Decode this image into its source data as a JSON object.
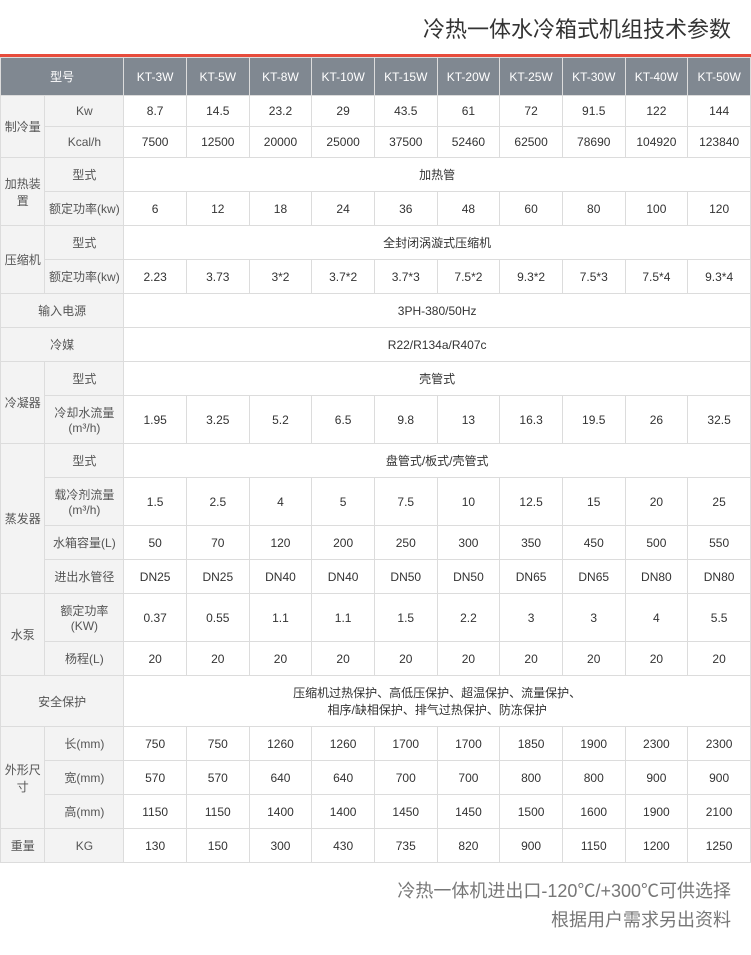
{
  "title": "冷热一体水冷箱式机组技术参数",
  "footer_line1": "冷热一体机进出口-120℃/+300℃可供选择",
  "footer_line2": "根据用户需求另出资料",
  "header": [
    "型号",
    "KT-3W",
    "KT-5W",
    "KT-8W",
    "KT-10W",
    "KT-15W",
    "KT-20W",
    "KT-25W",
    "KT-30W",
    "KT-40W",
    "KT-50W"
  ],
  "groups": {
    "cooling": {
      "label": "制冷量",
      "rows": [
        {
          "sub": "Kw",
          "v": [
            "8.7",
            "14.5",
            "23.2",
            "29",
            "43.5",
            "61",
            "72",
            "91.5",
            "122",
            "144"
          ]
        },
        {
          "sub": "Kcal/h",
          "v": [
            "7500",
            "12500",
            "20000",
            "25000",
            "37500",
            "52460",
            "62500",
            "78690",
            "104920",
            "123840"
          ]
        }
      ]
    },
    "heater": {
      "label": "加热装置",
      "rows": [
        {
          "sub": "型式",
          "span": "加热管"
        },
        {
          "sub": "额定功率(kw)",
          "v": [
            "6",
            "12",
            "18",
            "24",
            "36",
            "48",
            "60",
            "80",
            "100",
            "120"
          ]
        }
      ]
    },
    "compressor": {
      "label": "压缩机",
      "rows": [
        {
          "sub": "型式",
          "span": "全封闭涡漩式压缩机"
        },
        {
          "sub": "额定功率(kw)",
          "v": [
            "2.23",
            "3.73",
            "3*2",
            "3.7*2",
            "3.7*3",
            "7.5*2",
            "9.3*2",
            "7.5*3",
            "7.5*4",
            "9.3*4"
          ]
        }
      ]
    },
    "power": {
      "label": "输入电源",
      "span": "3PH-380/50Hz"
    },
    "refrig": {
      "label": "冷媒",
      "span": "R22/R134a/R407c"
    },
    "condenser": {
      "label": "冷凝器",
      "rows": [
        {
          "sub": "型式",
          "span": "壳管式"
        },
        {
          "sub": "冷却水流量(m³/h)",
          "v": [
            "1.95",
            "3.25",
            "5.2",
            "6.5",
            "9.8",
            "13",
            "16.3",
            "19.5",
            "26",
            "32.5"
          ]
        }
      ]
    },
    "evap": {
      "label": "蒸发器",
      "rows": [
        {
          "sub": "型式",
          "span": "盘管式/板式/壳管式"
        },
        {
          "sub": "载冷剂流量(m³/h)",
          "v": [
            "1.5",
            "2.5",
            "4",
            "5",
            "7.5",
            "10",
            "12.5",
            "15",
            "20",
            "25"
          ]
        },
        {
          "sub": "水箱容量(L)",
          "v": [
            "50",
            "70",
            "120",
            "200",
            "250",
            "300",
            "350",
            "450",
            "500",
            "550"
          ]
        },
        {
          "sub": "进出水管径",
          "v": [
            "DN25",
            "DN25",
            "DN40",
            "DN40",
            "DN50",
            "DN50",
            "DN65",
            "DN65",
            "DN80",
            "DN80"
          ]
        }
      ]
    },
    "pump": {
      "label": "水泵",
      "rows": [
        {
          "sub": "额定功率(KW)",
          "v": [
            "0.37",
            "0.55",
            "1.1",
            "1.1",
            "1.5",
            "2.2",
            "3",
            "3",
            "4",
            "5.5"
          ]
        },
        {
          "sub": "杨程(L)",
          "v": [
            "20",
            "20",
            "20",
            "20",
            "20",
            "20",
            "20",
            "20",
            "20",
            "20"
          ]
        }
      ]
    },
    "safety": {
      "label": "安全保护",
      "span": "压缩机过热保护、高低压保护、超温保护、流量保护、\n相序/缺相保护、排气过热保护、防冻保护"
    },
    "dims": {
      "label": "外形尺寸",
      "rows": [
        {
          "sub": "长(mm)",
          "v": [
            "750",
            "750",
            "1260",
            "1260",
            "1700",
            "1700",
            "1850",
            "1900",
            "2300",
            "2300"
          ]
        },
        {
          "sub": "宽(mm)",
          "v": [
            "570",
            "570",
            "640",
            "640",
            "700",
            "700",
            "800",
            "800",
            "900",
            "900"
          ]
        },
        {
          "sub": "高(mm)",
          "v": [
            "1150",
            "1150",
            "1400",
            "1400",
            "1450",
            "1450",
            "1500",
            "1600",
            "1900",
            "2100"
          ]
        }
      ]
    },
    "weight": {
      "label": "重量",
      "rows": [
        {
          "sub": "KG",
          "v": [
            "130",
            "150",
            "300",
            "430",
            "735",
            "820",
            "900",
            "1150",
            "1200",
            "1250"
          ]
        }
      ]
    }
  }
}
